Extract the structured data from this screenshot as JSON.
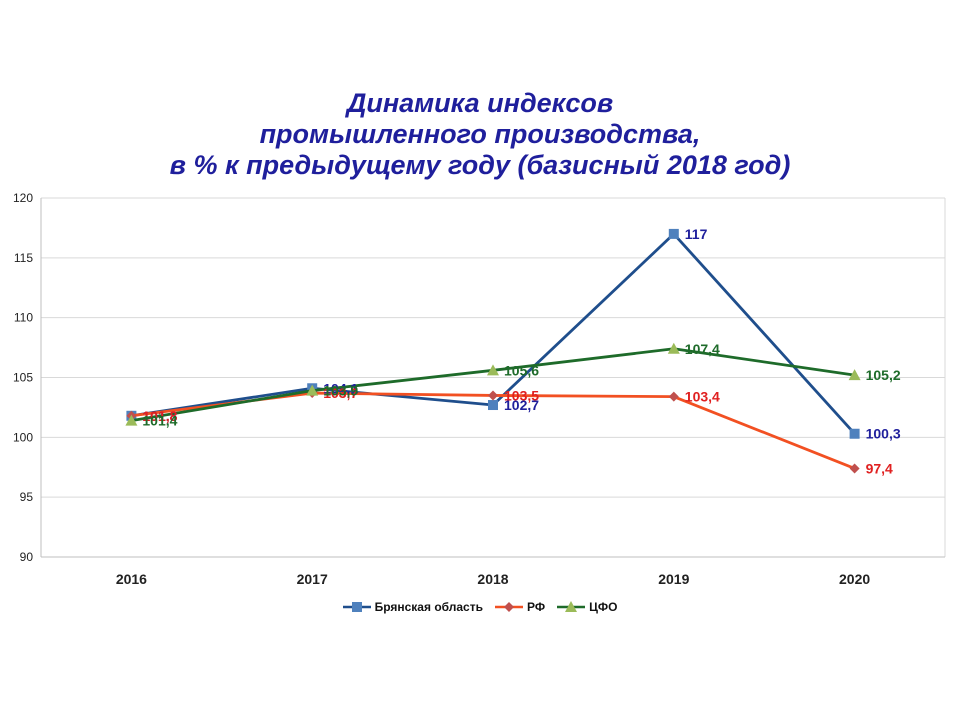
{
  "chart_data": {
    "type": "line",
    "title_lines": [
      "Динамика индексов",
      "промышленного производства,",
      "в % к предыдущему году (базисный 2018 год)"
    ],
    "categories": [
      "2016",
      "2017",
      "2018",
      "2019",
      "2020"
    ],
    "ylim": [
      90,
      120
    ],
    "yticks": [
      90,
      95,
      100,
      105,
      110,
      115,
      120
    ],
    "grid": true,
    "legend_position": "bottom",
    "series": [
      {
        "name": "Брянская область",
        "values": [
          101.8,
          104.1,
          102.7,
          117,
          100.3
        ],
        "labels": [
          "101,8",
          "104,1",
          "102,7",
          "117",
          "100,3"
        ],
        "color": "#1f4e8c",
        "marker_color": "#4f81bd",
        "label_color": "#1f1f9c",
        "marker": "square"
      },
      {
        "name": "РФ",
        "values": [
          101.8,
          103.7,
          103.5,
          103.4,
          97.4
        ],
        "labels": [
          "101,8",
          "103,7",
          "103,5",
          "103,4",
          "97,4"
        ],
        "color": "#f25022",
        "marker_color": "#c0504d",
        "label_color": "#e02020",
        "marker": "diamond"
      },
      {
        "name": "ЦФО",
        "values": [
          101.4,
          103.9,
          105.6,
          107.4,
          105.2
        ],
        "labels": [
          "101,4",
          "103,9",
          "105,6",
          "107,4",
          "105,2"
        ],
        "color": "#1e6b2a",
        "marker_color": "#9bbb59",
        "label_color": "#1e6b2a",
        "marker": "triangle"
      }
    ]
  }
}
